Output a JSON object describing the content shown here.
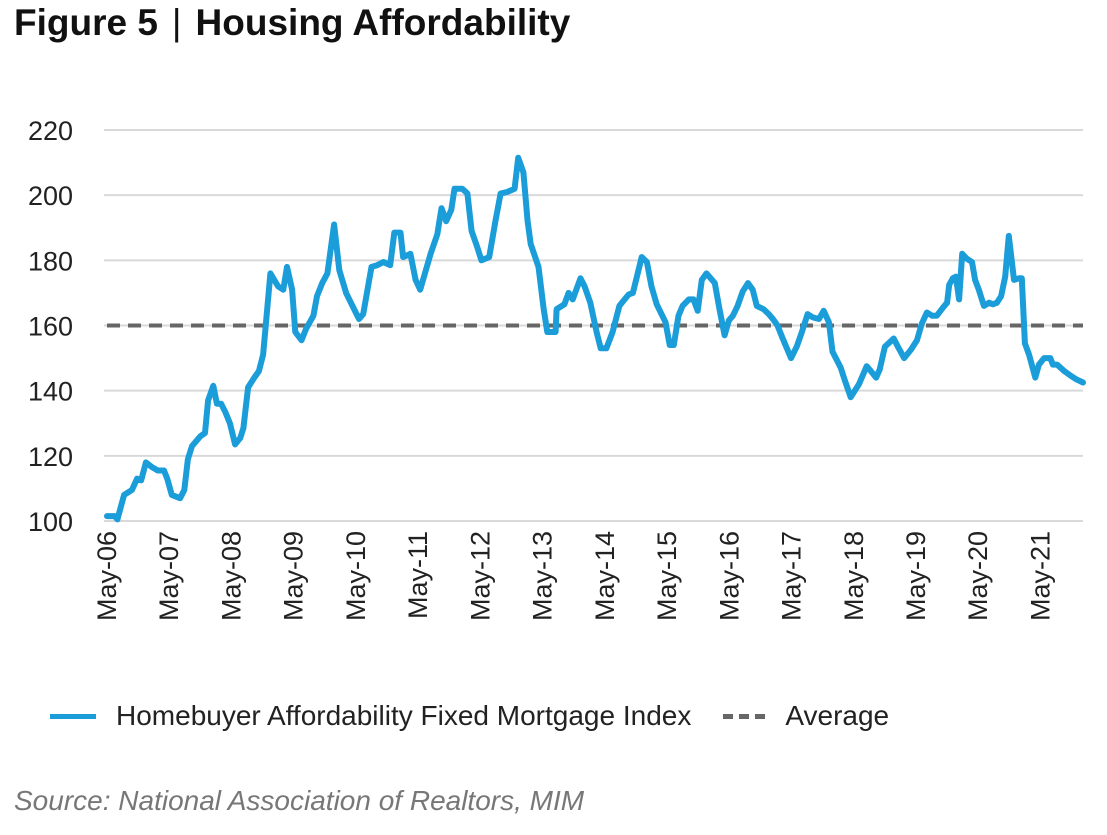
{
  "title": {
    "figure": "Figure 5",
    "separator": "|",
    "text": "Housing Affordability"
  },
  "source": "Source: National Association of Realtors, MIM",
  "colors": {
    "index": "#1a9dd9",
    "average": "#666666",
    "grid": "#d9d9d9"
  },
  "chart_data": {
    "type": "line",
    "title": "Housing Affordability",
    "xlabel": "",
    "ylabel": "",
    "x_units": "months since May-2006",
    "xlim": [
      0,
      188.2
    ],
    "ylim": [
      100,
      220
    ],
    "yticks": [
      100,
      120,
      140,
      160,
      180,
      200,
      220
    ],
    "xticks": [
      {
        "x": 0,
        "label": "May-06"
      },
      {
        "x": 12,
        "label": "May-07"
      },
      {
        "x": 24,
        "label": "May-08"
      },
      {
        "x": 36,
        "label": "May-09"
      },
      {
        "x": 48,
        "label": "May-10"
      },
      {
        "x": 60,
        "label": "May-11"
      },
      {
        "x": 72,
        "label": "May-12"
      },
      {
        "x": 84,
        "label": "May-13"
      },
      {
        "x": 96,
        "label": "May-14"
      },
      {
        "x": 108,
        "label": "May-15"
      },
      {
        "x": 120,
        "label": "May-16"
      },
      {
        "x": 132,
        "label": "May-17"
      },
      {
        "x": 144,
        "label": "May-18"
      },
      {
        "x": 156,
        "label": "May-19"
      },
      {
        "x": 168,
        "label": "May-20"
      },
      {
        "x": 180,
        "label": "May-21"
      }
    ],
    "grid": true,
    "legend_position": "bottom",
    "series": [
      {
        "name": "Homebuyer Affordability Fixed Mortgage Index",
        "style": "solid",
        "points": [
          [
            0,
            101.5
          ],
          [
            1.5,
            101.5
          ],
          [
            2,
            100.5
          ],
          [
            3.3,
            108
          ],
          [
            4.8,
            109.5
          ],
          [
            5.8,
            113
          ],
          [
            6.6,
            112.5
          ],
          [
            7.5,
            118
          ],
          [
            8.7,
            116.5
          ],
          [
            9.8,
            115.5
          ],
          [
            11,
            115.5
          ],
          [
            11.6,
            113
          ],
          [
            12.5,
            108
          ],
          [
            14.1,
            107
          ],
          [
            14.9,
            109.5
          ],
          [
            15.6,
            119
          ],
          [
            16.4,
            123
          ],
          [
            17.2,
            124.5
          ],
          [
            18,
            126
          ],
          [
            18.9,
            127
          ],
          [
            19.5,
            137
          ],
          [
            20.5,
            141.5
          ],
          [
            21.2,
            136
          ],
          [
            22,
            136
          ],
          [
            22.8,
            133.5
          ],
          [
            23.7,
            130
          ],
          [
            24.7,
            123.5
          ],
          [
            25.7,
            125.5
          ],
          [
            26.3,
            128.5
          ],
          [
            27.2,
            141
          ],
          [
            28.4,
            144
          ],
          [
            29.3,
            146
          ],
          [
            30.1,
            151
          ],
          [
            31.5,
            176
          ],
          [
            33,
            172
          ],
          [
            34,
            171
          ],
          [
            34.7,
            178
          ],
          [
            35.7,
            171
          ],
          [
            36.3,
            158
          ],
          [
            37.5,
            155.5
          ],
          [
            38.4,
            159
          ],
          [
            39.8,
            163
          ],
          [
            40.5,
            169
          ],
          [
            41.5,
            173
          ],
          [
            42.5,
            176
          ],
          [
            43.8,
            191
          ],
          [
            44.8,
            177
          ],
          [
            46.1,
            170
          ],
          [
            47.5,
            165.5
          ],
          [
            48.6,
            162
          ],
          [
            49.4,
            163.5
          ],
          [
            51,
            178
          ],
          [
            52.1,
            178.5
          ],
          [
            53.3,
            179.5
          ],
          [
            54.6,
            178.5
          ],
          [
            55.4,
            188.5
          ],
          [
            56.6,
            188.5
          ],
          [
            57.1,
            181
          ],
          [
            58.5,
            182
          ],
          [
            59.5,
            174
          ],
          [
            60.4,
            171
          ],
          [
            62.4,
            182
          ],
          [
            63.7,
            188
          ],
          [
            64.5,
            196
          ],
          [
            65.4,
            192
          ],
          [
            66.4,
            195.5
          ],
          [
            67,
            202
          ],
          [
            68.5,
            202
          ],
          [
            69.5,
            200.5
          ],
          [
            70.3,
            189
          ],
          [
            71.4,
            184
          ],
          [
            72.2,
            180
          ],
          [
            73.7,
            181
          ],
          [
            74.9,
            192
          ],
          [
            75.9,
            200.5
          ],
          [
            77.2,
            201
          ],
          [
            78.6,
            202
          ],
          [
            79.3,
            211.5
          ],
          [
            80.3,
            207
          ],
          [
            81.1,
            192
          ],
          [
            81.7,
            185
          ],
          [
            83.2,
            178
          ],
          [
            84.2,
            165
          ],
          [
            84.9,
            158
          ],
          [
            86.5,
            158
          ],
          [
            86.7,
            165
          ],
          [
            88.2,
            166.5
          ],
          [
            89,
            170
          ],
          [
            89.8,
            168
          ],
          [
            91.3,
            174.5
          ],
          [
            92.1,
            172
          ],
          [
            93.2,
            167
          ],
          [
            94.4,
            158
          ],
          [
            95.2,
            153
          ],
          [
            96.3,
            153
          ],
          [
            97.5,
            158
          ],
          [
            98.8,
            166
          ],
          [
            99.8,
            168
          ],
          [
            100.6,
            169.5
          ],
          [
            101.4,
            170
          ],
          [
            103.1,
            181
          ],
          [
            104.1,
            179.5
          ],
          [
            105,
            172
          ],
          [
            106,
            166.5
          ],
          [
            107.7,
            161
          ],
          [
            108.5,
            154
          ],
          [
            109.3,
            154
          ],
          [
            110.2,
            163
          ],
          [
            111,
            166
          ],
          [
            112.2,
            168
          ],
          [
            113.1,
            168
          ],
          [
            113.9,
            164.5
          ],
          [
            114.7,
            174
          ],
          [
            115.6,
            176
          ],
          [
            117.2,
            173
          ],
          [
            118.1,
            165
          ],
          [
            119.1,
            157
          ],
          [
            119.9,
            161.5
          ],
          [
            120.7,
            163
          ],
          [
            121.6,
            166
          ],
          [
            122.6,
            170.5
          ],
          [
            123.6,
            173
          ],
          [
            124.5,
            171
          ],
          [
            125.3,
            166
          ],
          [
            126.6,
            165
          ],
          [
            127.6,
            163.5
          ],
          [
            128.4,
            162
          ],
          [
            129.3,
            160
          ],
          [
            130.3,
            156
          ],
          [
            131.9,
            150
          ],
          [
            133,
            153.5
          ],
          [
            134,
            158
          ],
          [
            135.1,
            163.5
          ],
          [
            136.1,
            162.5
          ],
          [
            137.3,
            162
          ],
          [
            138.2,
            164.5
          ],
          [
            139.2,
            161
          ],
          [
            139.9,
            152
          ],
          [
            141.5,
            147
          ],
          [
            142.3,
            143
          ],
          [
            143.4,
            138
          ],
          [
            145,
            142
          ],
          [
            146.5,
            147.5
          ],
          [
            147.3,
            146
          ],
          [
            148.3,
            144
          ],
          [
            149,
            146.5
          ],
          [
            150,
            153.5
          ],
          [
            151.7,
            156
          ],
          [
            152.5,
            153.5
          ],
          [
            153.7,
            150
          ],
          [
            155,
            152.5
          ],
          [
            156.2,
            155.5
          ],
          [
            157.1,
            160.5
          ],
          [
            158.1,
            164
          ],
          [
            159.1,
            163
          ],
          [
            160,
            163
          ],
          [
            161.2,
            165.5
          ],
          [
            162,
            167
          ],
          [
            162.4,
            172.5
          ],
          [
            163.1,
            174.5
          ],
          [
            163.7,
            175
          ],
          [
            164.3,
            168
          ],
          [
            164.9,
            182
          ],
          [
            165.8,
            180.5
          ],
          [
            166.8,
            179.5
          ],
          [
            167.4,
            174
          ],
          [
            168.1,
            171
          ],
          [
            169.1,
            166
          ],
          [
            170.1,
            167
          ],
          [
            170.8,
            166.5
          ],
          [
            171.6,
            167
          ],
          [
            172.4,
            169
          ],
          [
            173.2,
            175
          ],
          [
            173.9,
            187.5
          ],
          [
            174.9,
            174
          ],
          [
            175.9,
            174.5
          ],
          [
            176.4,
            174.5
          ],
          [
            177,
            154.5
          ],
          [
            177.8,
            151
          ],
          [
            179,
            144
          ],
          [
            179.7,
            148
          ],
          [
            180.7,
            150
          ],
          [
            181.9,
            150
          ],
          [
            182.4,
            148
          ],
          [
            183.2,
            148
          ],
          [
            184.6,
            146
          ],
          [
            185.9,
            144.5
          ],
          [
            186.9,
            143.5
          ],
          [
            188.2,
            142.5
          ]
        ]
      },
      {
        "name": "Average",
        "style": "dashed",
        "value": 160
      }
    ]
  }
}
